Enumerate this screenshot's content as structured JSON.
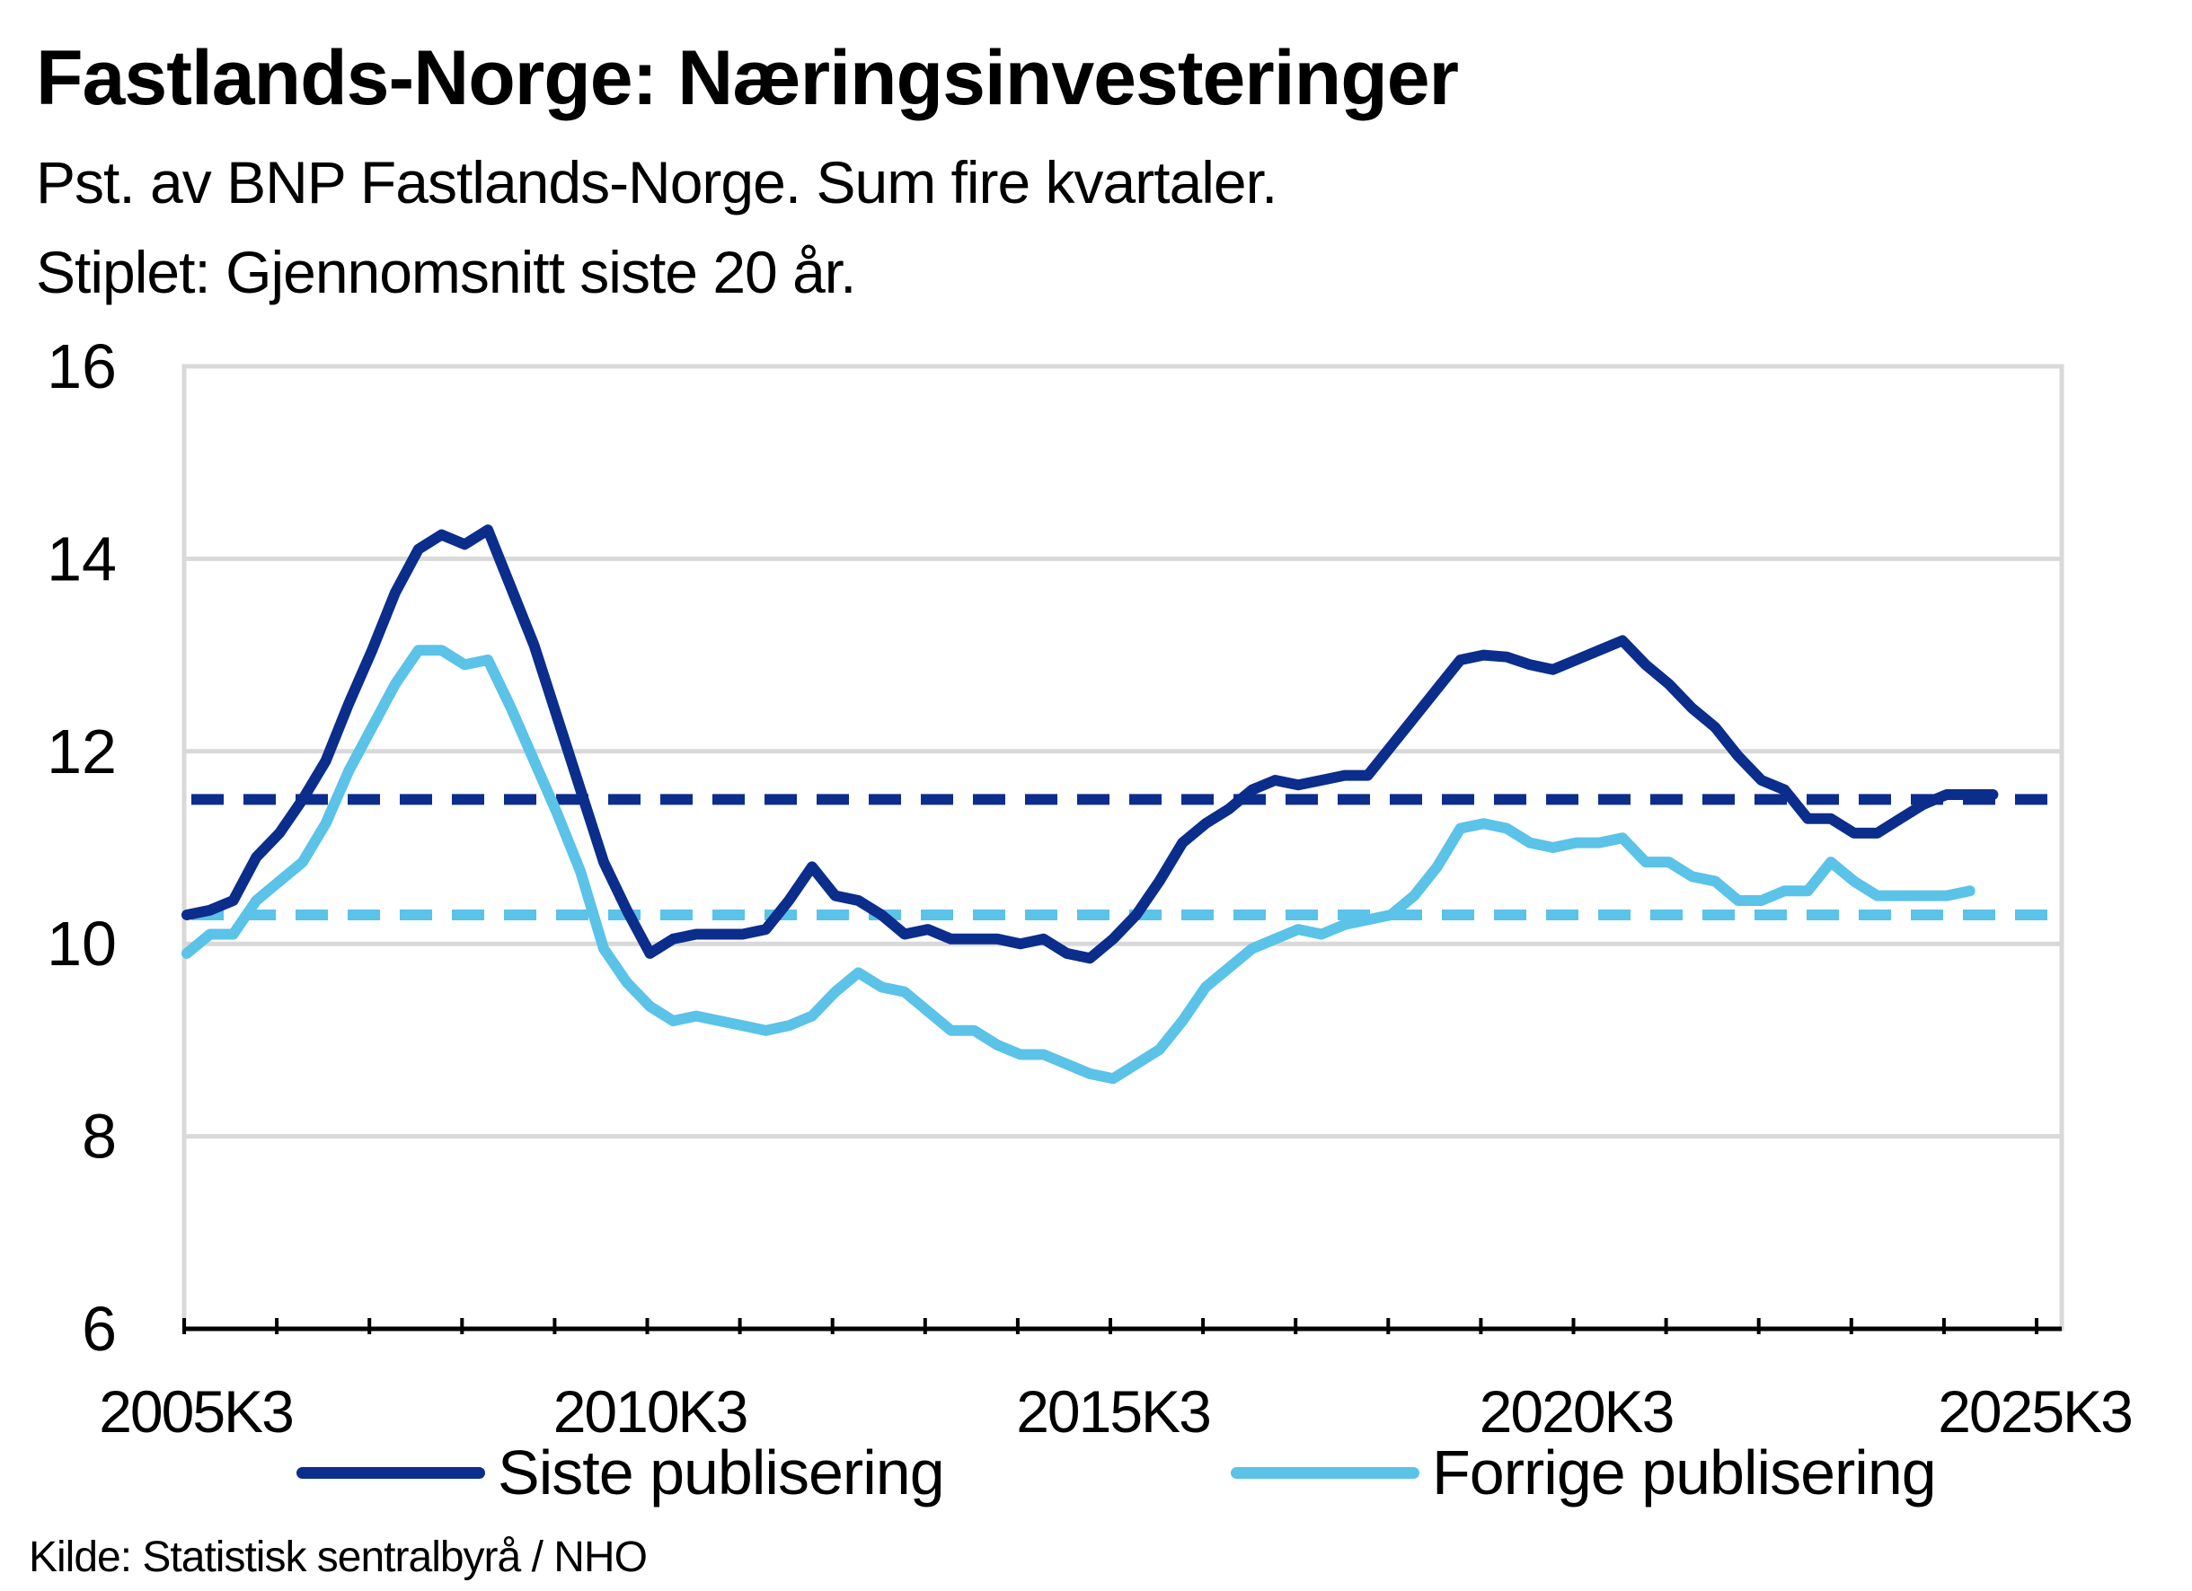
{
  "title": "Fastlands-Norge:  Næringsinvesteringer",
  "subtitle_line1": "Pst. av BNP Fastlands-Norge. Sum fire kvartaler.",
  "subtitle_line2": "Stiplet: Gjennomsnitt siste 20 år.",
  "source": "Kilde:  Statistisk sentralbyrå / NHO",
  "chart_data": {
    "type": "line",
    "x_start": "2005K3",
    "x_end": "2025K3",
    "x_tick_labels": [
      "2005K3",
      "2010K3",
      "2015K3",
      "2020K3",
      "2025K3"
    ],
    "y_ticks": [
      6,
      8,
      10,
      12,
      14,
      16
    ],
    "ylim": [
      6,
      16
    ],
    "grid": true,
    "legend_position": "bottom",
    "series": [
      {
        "name": "Siste publisering",
        "color": "#0b2d8c",
        "values": [
          10.3,
          10.35,
          10.45,
          10.9,
          11.15,
          11.5,
          11.9,
          12.5,
          13.05,
          13.65,
          14.1,
          14.25,
          14.15,
          14.3,
          13.7,
          13.1,
          12.35,
          11.6,
          10.85,
          10.35,
          9.9,
          10.05,
          10.1,
          10.1,
          10.1,
          10.15,
          10.45,
          10.8,
          10.5,
          10.45,
          10.3,
          10.1,
          10.15,
          10.05,
          10.05,
          10.05,
          10.0,
          10.05,
          9.9,
          9.85,
          10.05,
          10.3,
          10.65,
          11.05,
          11.25,
          11.4,
          11.6,
          11.7,
          11.65,
          11.7,
          11.75,
          11.75,
          12.05,
          12.35,
          12.65,
          12.95,
          13.0,
          12.98,
          12.9,
          12.85,
          12.95,
          13.05,
          13.15,
          12.9,
          12.7,
          12.45,
          12.25,
          11.95,
          11.7,
          11.6,
          11.3,
          11.3,
          11.15,
          11.15,
          11.3,
          11.45,
          11.55,
          11.55,
          11.55
        ]
      },
      {
        "name": "Forrige publisering",
        "color": "#5bc2e8",
        "values": [
          9.9,
          10.1,
          10.1,
          10.45,
          10.65,
          10.85,
          11.25,
          11.8,
          12.25,
          12.7,
          13.05,
          13.05,
          12.9,
          12.95,
          12.45,
          11.9,
          11.35,
          10.75,
          9.95,
          9.6,
          9.35,
          9.2,
          9.25,
          9.2,
          9.15,
          9.1,
          9.15,
          9.25,
          9.5,
          9.7,
          9.55,
          9.5,
          9.3,
          9.1,
          9.1,
          8.95,
          8.85,
          8.85,
          8.75,
          8.65,
          8.6,
          8.75,
          8.9,
          9.2,
          9.55,
          9.75,
          9.95,
          10.05,
          10.15,
          10.1,
          10.2,
          10.25,
          10.3,
          10.5,
          10.8,
          11.2,
          11.25,
          11.2,
          11.05,
          11.0,
          11.05,
          11.05,
          11.1,
          10.85,
          10.85,
          10.7,
          10.65,
          10.45,
          10.45,
          10.55,
          10.55,
          10.85,
          10.65,
          10.5,
          10.5,
          10.5,
          10.5,
          10.55
        ]
      }
    ],
    "averages": [
      {
        "series": "Siste publisering",
        "value": 11.5,
        "color": "#0b2d8c"
      },
      {
        "series": "Forrige publisering",
        "value": 10.3,
        "color": "#5bc2e8"
      }
    ]
  }
}
